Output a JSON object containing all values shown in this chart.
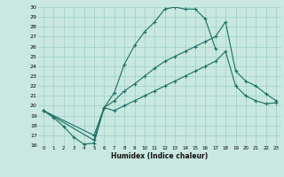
{
  "xlabel": "Humidex (Indice chaleur)",
  "xlim": [
    -0.5,
    23.5
  ],
  "ylim": [
    16,
    30
  ],
  "yticks": [
    16,
    17,
    18,
    19,
    20,
    21,
    22,
    23,
    24,
    25,
    26,
    27,
    28,
    29,
    30
  ],
  "xticks": [
    0,
    1,
    2,
    3,
    4,
    5,
    6,
    7,
    8,
    9,
    10,
    11,
    12,
    13,
    14,
    15,
    16,
    17,
    18,
    19,
    20,
    21,
    22,
    23
  ],
  "bg_color": "#c8e8e0",
  "line_color": "#1a6e62",
  "grid_color": "#9ecfc4",
  "line1_x": [
    0,
    1,
    2,
    3,
    4,
    5,
    6,
    7,
    8,
    9,
    10,
    11,
    12,
    13,
    14,
    15,
    16,
    17
  ],
  "line1_y": [
    19.5,
    18.8,
    17.9,
    16.8,
    16.1,
    16.2,
    19.8,
    21.3,
    24.2,
    26.1,
    27.5,
    28.5,
    29.8,
    30.0,
    29.8,
    29.8,
    28.8,
    25.8
  ],
  "line2_x": [
    0,
    5,
    6,
    7,
    8,
    9,
    10,
    11,
    12,
    13,
    14,
    15,
    16,
    17,
    18,
    19,
    20,
    21,
    22,
    23
  ],
  "line2_y": [
    19.5,
    16.5,
    19.8,
    20.5,
    21.5,
    22.2,
    23.0,
    23.8,
    24.5,
    25.0,
    25.5,
    26.0,
    26.5,
    27.0,
    28.5,
    23.5,
    22.5,
    22.0,
    21.2,
    20.5
  ],
  "line3_x": [
    0,
    5,
    6,
    7,
    8,
    9,
    10,
    11,
    12,
    13,
    14,
    15,
    16,
    17,
    18,
    19,
    20,
    21,
    22,
    23
  ],
  "line3_y": [
    19.5,
    17.0,
    19.8,
    19.5,
    20.0,
    20.5,
    21.0,
    21.5,
    22.0,
    22.5,
    23.0,
    23.5,
    24.0,
    24.5,
    25.5,
    22.0,
    21.0,
    20.5,
    20.2,
    20.3
  ]
}
